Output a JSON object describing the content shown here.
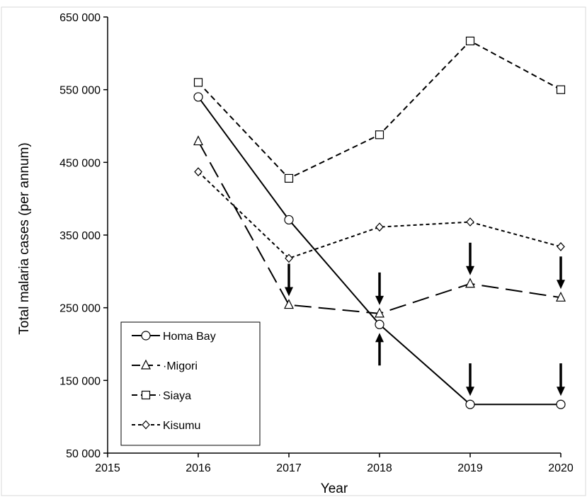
{
  "chart_data": {
    "type": "line",
    "title": "",
    "xlabel": "Year",
    "ylabel": "Total malaria cases (per annum)",
    "xlim": [
      2015,
      2020
    ],
    "ylim": [
      50000,
      650000
    ],
    "x_ticks": [
      2015,
      2016,
      2017,
      2018,
      2019,
      2020
    ],
    "x_tick_labels": [
      "2015",
      "2016",
      "2017",
      "2018",
      "2019",
      "2020"
    ],
    "y_ticks": [
      50000,
      150000,
      250000,
      350000,
      450000,
      550000,
      650000
    ],
    "y_tick_labels": [
      "50 000",
      "150 000",
      "250 000",
      "350 000",
      "450 000",
      "550 000",
      "650 000"
    ],
    "grid": false,
    "legend_position": "bottom-left",
    "x": [
      2016,
      2017,
      2018,
      2019,
      2020
    ],
    "series": [
      {
        "name": "Homa Bay",
        "legend_label": "Homa Bay",
        "marker": "circle",
        "dash": "solid",
        "values": [
          540000,
          371000,
          227000,
          117000,
          117000
        ]
      },
      {
        "name": "Migori",
        "legend_label": "·Migori",
        "marker": "triangle",
        "dash": "long-dash",
        "values": [
          479000,
          254000,
          242000,
          283000,
          264000
        ]
      },
      {
        "name": "Siaya",
        "legend_label": "Siaya",
        "marker": "square",
        "dash": "dash",
        "values": [
          560000,
          428000,
          488000,
          617000,
          550000
        ]
      },
      {
        "name": "Kisumu",
        "legend_label": "Kisumu",
        "marker": "diamond",
        "dash": "short-dash",
        "values": [
          437000,
          318000,
          361000,
          368000,
          334000
        ]
      }
    ],
    "annotations": [
      {
        "type": "arrow-down",
        "x": 2017,
        "target": 254000
      },
      {
        "type": "arrow-down",
        "x": 2018,
        "target": 242000
      },
      {
        "type": "arrow-up",
        "x": 2018,
        "target": 227000
      },
      {
        "type": "arrow-down",
        "x": 2019,
        "target": 283000
      },
      {
        "type": "arrow-down",
        "x": 2020,
        "target": 264000
      },
      {
        "type": "arrow-down",
        "x": 2019,
        "target": 117000
      },
      {
        "type": "arrow-down",
        "x": 2020,
        "target": 117000
      }
    ]
  }
}
